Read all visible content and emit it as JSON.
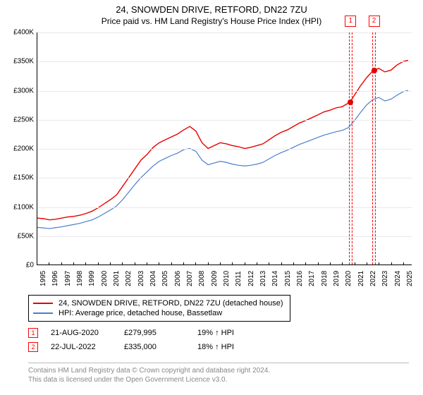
{
  "title": "24, SNOWDEN DRIVE, RETFORD, DN22 7ZU",
  "subtitle": "Price paid vs. HM Land Registry's House Price Index (HPI)",
  "chart": {
    "type": "line",
    "background_color": "#ffffff",
    "grid_color": "#e8e8e8",
    "axis_color": "#000000",
    "label_fontsize": 10,
    "x": {
      "min": 1995,
      "max": 2025.7,
      "ticks": [
        1995,
        1996,
        1997,
        1998,
        1999,
        2000,
        2001,
        2002,
        2003,
        2004,
        2005,
        2006,
        2007,
        2008,
        2009,
        2010,
        2011,
        2012,
        2013,
        2014,
        2015,
        2016,
        2017,
        2018,
        2019,
        2020,
        2021,
        2022,
        2023,
        2024,
        2025
      ]
    },
    "y": {
      "min": 0,
      "max": 400000,
      "ticks": [
        0,
        50000,
        100000,
        150000,
        200000,
        250000,
        300000,
        350000,
        400000
      ],
      "tick_labels": [
        "£0",
        "£50K",
        "£100K",
        "£150K",
        "£200K",
        "£250K",
        "£300K",
        "£350K",
        "£400K"
      ]
    },
    "series": [
      {
        "id": "price_paid",
        "label": "24, SNOWDEN DRIVE, RETFORD, DN22 7ZU (detached house)",
        "color": "#e60000",
        "line_width": 1.4,
        "data": [
          [
            1995.0,
            80000
          ],
          [
            1995.5,
            79000
          ],
          [
            1996.0,
            77000
          ],
          [
            1996.5,
            78000
          ],
          [
            1997.0,
            80000
          ],
          [
            1997.5,
            82000
          ],
          [
            1998.0,
            83000
          ],
          [
            1998.5,
            85000
          ],
          [
            1999.0,
            88000
          ],
          [
            1999.5,
            92000
          ],
          [
            2000.0,
            98000
          ],
          [
            2000.5,
            105000
          ],
          [
            2001.0,
            112000
          ],
          [
            2001.5,
            120000
          ],
          [
            2002.0,
            135000
          ],
          [
            2002.5,
            150000
          ],
          [
            2003.0,
            165000
          ],
          [
            2003.5,
            180000
          ],
          [
            2004.0,
            190000
          ],
          [
            2004.5,
            202000
          ],
          [
            2005.0,
            210000
          ],
          [
            2005.5,
            215000
          ],
          [
            2006.0,
            220000
          ],
          [
            2006.5,
            225000
          ],
          [
            2007.0,
            232000
          ],
          [
            2007.5,
            238000
          ],
          [
            2008.0,
            230000
          ],
          [
            2008.5,
            210000
          ],
          [
            2009.0,
            200000
          ],
          [
            2009.5,
            205000
          ],
          [
            2010.0,
            210000
          ],
          [
            2010.5,
            208000
          ],
          [
            2011.0,
            205000
          ],
          [
            2011.5,
            203000
          ],
          [
            2012.0,
            200000
          ],
          [
            2012.5,
            202000
          ],
          [
            2013.0,
            205000
          ],
          [
            2013.5,
            208000
          ],
          [
            2014.0,
            215000
          ],
          [
            2014.5,
            222000
          ],
          [
            2015.0,
            228000
          ],
          [
            2015.5,
            232000
          ],
          [
            2016.0,
            238000
          ],
          [
            2016.5,
            244000
          ],
          [
            2017.0,
            248000
          ],
          [
            2017.5,
            253000
          ],
          [
            2018.0,
            258000
          ],
          [
            2018.5,
            263000
          ],
          [
            2019.0,
            266000
          ],
          [
            2019.5,
            270000
          ],
          [
            2020.0,
            272000
          ],
          [
            2020.64,
            279995
          ],
          [
            2021.0,
            292000
          ],
          [
            2021.5,
            308000
          ],
          [
            2022.0,
            322000
          ],
          [
            2022.56,
            335000
          ],
          [
            2023.0,
            338000
          ],
          [
            2023.5,
            332000
          ],
          [
            2024.0,
            335000
          ],
          [
            2024.5,
            344000
          ],
          [
            2025.0,
            350000
          ],
          [
            2025.4,
            352000
          ]
        ]
      },
      {
        "id": "hpi",
        "label": "HPI: Average price, detached house, Bassetlaw",
        "color": "#4a7ecb",
        "line_width": 1.2,
        "data": [
          [
            1995.0,
            64000
          ],
          [
            1995.5,
            63000
          ],
          [
            1996.0,
            62000
          ],
          [
            1996.5,
            63500
          ],
          [
            1997.0,
            65000
          ],
          [
            1997.5,
            67000
          ],
          [
            1998.0,
            69000
          ],
          [
            1998.5,
            71000
          ],
          [
            1999.0,
            74000
          ],
          [
            1999.5,
            77000
          ],
          [
            2000.0,
            82000
          ],
          [
            2000.5,
            88000
          ],
          [
            2001.0,
            94000
          ],
          [
            2001.5,
            101000
          ],
          [
            2002.0,
            112000
          ],
          [
            2002.5,
            125000
          ],
          [
            2003.0,
            138000
          ],
          [
            2003.5,
            150000
          ],
          [
            2004.0,
            160000
          ],
          [
            2004.5,
            170000
          ],
          [
            2005.0,
            178000
          ],
          [
            2005.5,
            183000
          ],
          [
            2006.0,
            188000
          ],
          [
            2006.5,
            192000
          ],
          [
            2007.0,
            198000
          ],
          [
            2007.5,
            200000
          ],
          [
            2008.0,
            195000
          ],
          [
            2008.5,
            180000
          ],
          [
            2009.0,
            172000
          ],
          [
            2009.5,
            175000
          ],
          [
            2010.0,
            178000
          ],
          [
            2010.5,
            176000
          ],
          [
            2011.0,
            173000
          ],
          [
            2011.5,
            171000
          ],
          [
            2012.0,
            170000
          ],
          [
            2012.5,
            171000
          ],
          [
            2013.0,
            173000
          ],
          [
            2013.5,
            176000
          ],
          [
            2014.0,
            182000
          ],
          [
            2014.5,
            188000
          ],
          [
            2015.0,
            193000
          ],
          [
            2015.5,
            197000
          ],
          [
            2016.0,
            202000
          ],
          [
            2016.5,
            207000
          ],
          [
            2017.0,
            211000
          ],
          [
            2017.5,
            215000
          ],
          [
            2018.0,
            219000
          ],
          [
            2018.5,
            223000
          ],
          [
            2019.0,
            226000
          ],
          [
            2019.5,
            229000
          ],
          [
            2020.0,
            231000
          ],
          [
            2020.5,
            236000
          ],
          [
            2021.0,
            248000
          ],
          [
            2021.5,
            262000
          ],
          [
            2022.0,
            275000
          ],
          [
            2022.5,
            284000
          ],
          [
            2023.0,
            288000
          ],
          [
            2023.5,
            282000
          ],
          [
            2024.0,
            285000
          ],
          [
            2024.5,
            292000
          ],
          [
            2025.0,
            298000
          ],
          [
            2025.4,
            300000
          ]
        ]
      }
    ],
    "sale_markers": [
      {
        "n": "1",
        "x": 2020.64,
        "y": 279995,
        "band_width_years": 0.3
      },
      {
        "n": "2",
        "x": 2022.56,
        "y": 335000,
        "band_width_years": 0.3
      }
    ],
    "marker_border_color": "#ff0000",
    "marker_dot_color": "#e60000",
    "marker_label_top_offset": -24
  },
  "legend": {
    "border_color": "#000000",
    "fontsize": 11,
    "items": [
      {
        "color": "#e60000",
        "label": "24, SNOWDEN DRIVE, RETFORD, DN22 7ZU (detached house)"
      },
      {
        "color": "#4a7ecb",
        "label": "HPI: Average price, detached house, Bassetlaw"
      }
    ]
  },
  "sales": [
    {
      "n": "1",
      "date": "21-AUG-2020",
      "price": "£279,995",
      "delta": "19% ↑ HPI"
    },
    {
      "n": "2",
      "date": "22-JUL-2022",
      "price": "£335,000",
      "delta": "18% ↑ HPI"
    }
  ],
  "attribution": {
    "line1": "Contains HM Land Registry data © Crown copyright and database right 2024.",
    "line2": "This data is licensed under the Open Government Licence v3.0."
  }
}
